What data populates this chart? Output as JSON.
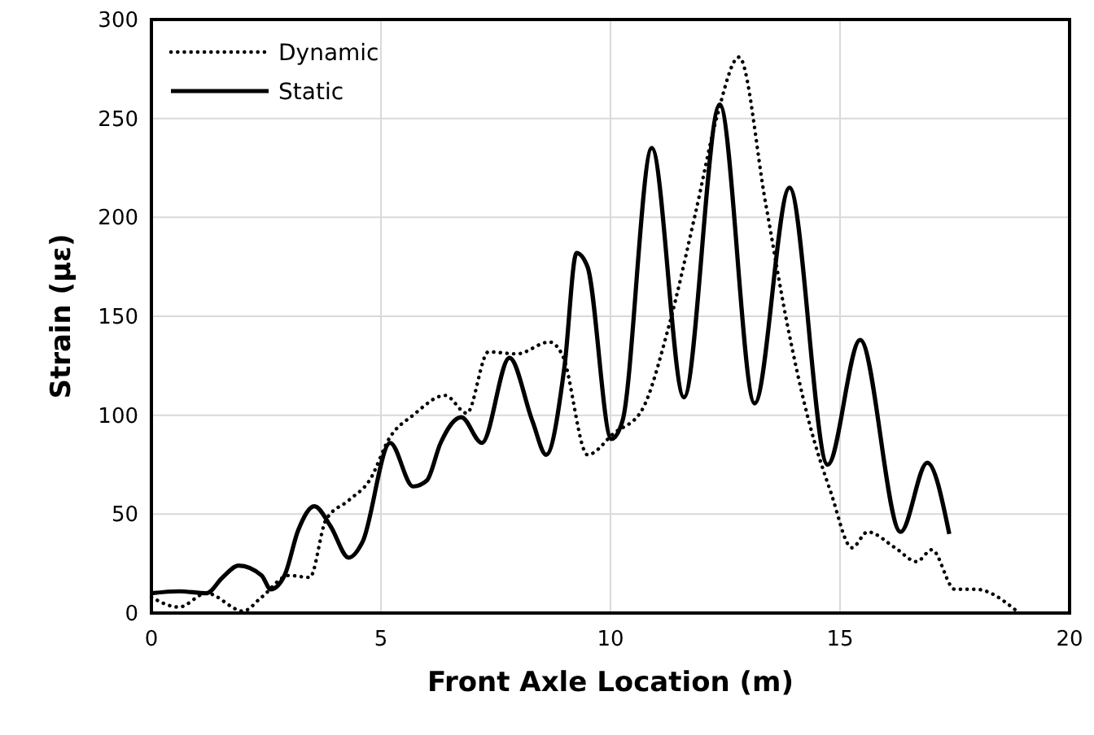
{
  "chart_data": {
    "type": "line",
    "xlabel": "Front Axle Location (m)",
    "ylabel": "Strain (με)",
    "xlim": [
      0,
      20
    ],
    "xticks": [
      0,
      5,
      10,
      15,
      20
    ],
    "ylim": [
      0,
      300
    ],
    "yticks": [
      0,
      50,
      100,
      150,
      200,
      250,
      300
    ],
    "grid": true,
    "legend": "top left",
    "marker": "none",
    "series": [
      {
        "name": "Dynamic",
        "color": "#000000",
        "line_style": "dotted",
        "x": [
          0,
          0.6,
          1.2,
          2.0,
          2.4,
          3.0,
          3.45,
          3.8,
          4.3,
          4.75,
          5.2,
          5.7,
          6.4,
          6.87,
          7.34,
          7.96,
          8.67,
          8.96,
          9.5,
          10.08,
          10.67,
          11.26,
          11.85,
          12.32,
          12.8,
          13.38,
          13.85,
          14.32,
          14.8,
          15.26,
          15.6,
          16.2,
          16.67,
          17.0,
          17.5,
          17.96,
          18.85
        ],
        "values": [
          8,
          3,
          10,
          1,
          8,
          19,
          18,
          47,
          57,
          67,
          89,
          100,
          110,
          101,
          132,
          131,
          137,
          130,
          80,
          91,
          102,
          144,
          202,
          251,
          281,
          207,
          146,
          97,
          61,
          33,
          41,
          33,
          26,
          32,
          12,
          12,
          1
        ]
      },
      {
        "name": "Static",
        "color": "#000000",
        "line_style": "solid",
        "x": [
          0,
          0.6,
          1.2,
          1.55,
          1.9,
          2.4,
          2.6,
          2.9,
          3.2,
          3.55,
          3.9,
          4.3,
          4.6,
          5.2,
          5.7,
          6.0,
          6.3,
          6.75,
          7.2,
          7.8,
          8.3,
          8.6,
          9.0,
          9.26,
          9.5,
          10.02,
          10.26,
          10.9,
          11.6,
          12.38,
          13.14,
          13.9,
          14.73,
          15.44,
          16.32,
          16.9,
          17.38
        ],
        "values": [
          10,
          11,
          10,
          18,
          24,
          19,
          12,
          19,
          42,
          54,
          44,
          28,
          36,
          86,
          64,
          67,
          86,
          99,
          86,
          129,
          97,
          80,
          125,
          182,
          175,
          88,
          97,
          235,
          109,
          257,
          106,
          215,
          75,
          138,
          41,
          76,
          40
        ]
      }
    ]
  }
}
